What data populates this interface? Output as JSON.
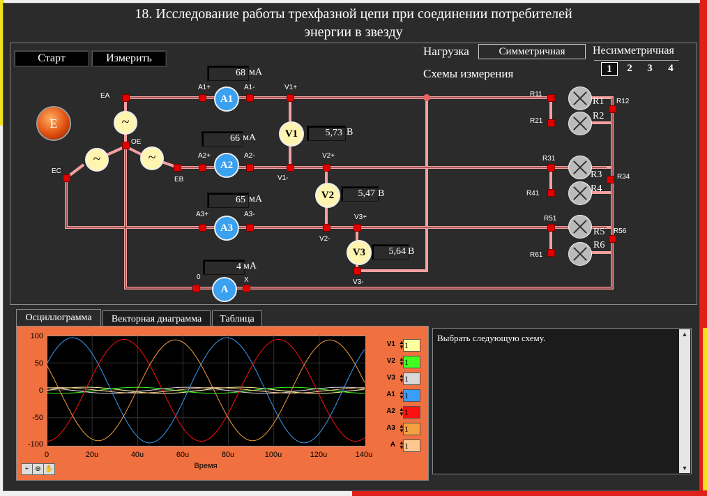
{
  "title_line1": "18. Исследование работы трехфазной цепи при соединении потребителей",
  "title_line2": "энергии в звезду",
  "buttons": {
    "start": "Старт",
    "measure": "Измерить"
  },
  "load": {
    "label": "Нагрузка",
    "selected": "Симметричная",
    "other": "Несимметричная"
  },
  "schemes": {
    "label": "Схемы измерения",
    "items": [
      "1",
      "2",
      "3",
      "4"
    ],
    "selected": "1"
  },
  "source_label": "E",
  "ammeters": {
    "A1": {
      "name": "A1",
      "value": "68",
      "unit": "мА",
      "plus": "A1+",
      "minus": "A1-"
    },
    "A2": {
      "name": "A2",
      "value": "66",
      "unit": "мА",
      "plus": "A2+",
      "minus": "A2-"
    },
    "A3": {
      "name": "A3",
      "value": "65",
      "unit": "мА",
      "plus": "A3+",
      "minus": "A3-"
    },
    "A": {
      "name": "A",
      "value": "4",
      "unit": "мА",
      "plus": "0",
      "minus": "X"
    }
  },
  "voltmeters": {
    "V1": {
      "name": "V1",
      "value": "5,73",
      "unit": "В",
      "plus": "V1+",
      "minus": "V1-"
    },
    "V2": {
      "name": "V2",
      "value": "5,47",
      "unit": "В",
      "plus": "V2+",
      "minus": "V2-"
    },
    "V3": {
      "name": "V3",
      "value": "5,64",
      "unit": "В",
      "plus": "V3+",
      "minus": "V3-"
    }
  },
  "nodes": {
    "EA": "EA",
    "EB": "EB",
    "EC": "EC",
    "OE": "OE"
  },
  "source_symbol": "~",
  "resistors": {
    "R1": "R1",
    "R2": "R2",
    "R3": "R3",
    "R4": "R4",
    "R5": "R5",
    "R6": "R6",
    "R11": "R11",
    "R12": "R12",
    "R21": "R21",
    "R31": "R31",
    "R34": "R34",
    "R41": "R41",
    "R51": "R51",
    "R56": "R56",
    "R61": "R61"
  },
  "tabs": [
    "Осциллограмма",
    "Векторная диаграмма",
    "Таблица"
  ],
  "active_tab": "Осциллограмма",
  "message": "Выбрать следующую схему.",
  "colors": {
    "V1": "#ffffa0",
    "V2": "#40ff20",
    "V3": "#d8d8d8",
    "A1": "#3a9df8",
    "A2": "#ff1010",
    "A3": "#f4a040",
    "A": "#ffc890"
  },
  "chart_data": {
    "type": "line",
    "xlabel": "Время",
    "ylabel": "",
    "xlim": [
      0,
      140
    ],
    "ylim": [
      -100,
      100
    ],
    "x_ticks": [
      "0",
      "20u",
      "40u",
      "60u",
      "80u",
      "100u",
      "120u",
      "140u"
    ],
    "y_ticks": [
      "100",
      "50",
      "0",
      "-50",
      "-100"
    ],
    "series": [
      {
        "name": "V1",
        "color": "#ffffa0",
        "amplitude": 5.7,
        "phase_deg": 0
      },
      {
        "name": "V2",
        "color": "#40ff20",
        "amplitude": 5.5,
        "phase_deg": -120
      },
      {
        "name": "V3",
        "color": "#d8d8d8",
        "amplitude": 5.6,
        "phase_deg": 120
      },
      {
        "name": "A1",
        "color": "#3a9df8",
        "amplitude": 96,
        "phase_deg": 30
      },
      {
        "name": "A2",
        "color": "#ff1010",
        "amplitude": 93,
        "phase_deg": -90
      },
      {
        "name": "A3",
        "color": "#f4a040",
        "amplitude": 92,
        "phase_deg": 150
      },
      {
        "name": "A",
        "color": "#ffc890",
        "amplitude": 5,
        "phase_deg": 60
      }
    ],
    "period": 68,
    "legend_values": [
      "1",
      "1",
      "1",
      "1",
      "1",
      "1",
      "1"
    ]
  }
}
